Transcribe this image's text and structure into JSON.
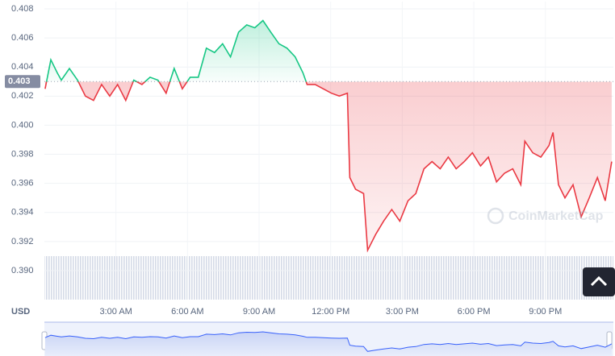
{
  "chart_data": {
    "type": "line",
    "currency": "USD",
    "watermark": "CoinMarketCap",
    "reference_line": {
      "value": 0.403,
      "label": "0.403"
    },
    "colors": {
      "above": "#16c784",
      "below": "#ea3943"
    },
    "grid": true,
    "xlim": [
      0,
      23.85
    ],
    "xticks": [
      {
        "value": 3,
        "label": "3:00 AM"
      },
      {
        "value": 6,
        "label": "6:00 AM"
      },
      {
        "value": 9,
        "label": "9:00 AM"
      },
      {
        "value": 12,
        "label": "12:00 PM"
      },
      {
        "value": 15,
        "label": "3:00 PM"
      },
      {
        "value": 18,
        "label": "6:00 PM"
      },
      {
        "value": 21,
        "label": "9:00 PM"
      }
    ],
    "ylim": [
      0.389,
      0.4085
    ],
    "yticks": [
      {
        "value": 0.39,
        "label": "0.390"
      },
      {
        "value": 0.392,
        "label": "0.392"
      },
      {
        "value": 0.394,
        "label": "0.394"
      },
      {
        "value": 0.396,
        "label": "0.396"
      },
      {
        "value": 0.398,
        "label": "0.398"
      },
      {
        "value": 0.4,
        "label": "0.400"
      },
      {
        "value": 0.402,
        "label": "0.402"
      },
      {
        "value": 0.404,
        "label": "0.404"
      },
      {
        "value": 0.406,
        "label": "0.406"
      },
      {
        "value": 0.408,
        "label": "0.408"
      }
    ],
    "x": [
      0.03,
      0.27,
      0.54,
      0.71,
      1.05,
      1.39,
      1.72,
      2.06,
      2.4,
      2.74,
      3.07,
      3.41,
      3.75,
      4.09,
      4.43,
      4.76,
      5.1,
      5.44,
      5.78,
      6.11,
      6.45,
      6.79,
      7.13,
      7.47,
      7.8,
      8.14,
      8.48,
      8.82,
      9.16,
      9.49,
      9.83,
      10.17,
      10.51,
      10.84,
      11.01,
      11.35,
      11.69,
      12.03,
      12.36,
      12.7,
      12.8,
      13.04,
      13.38,
      13.55,
      13.89,
      14.22,
      14.56,
      14.9,
      15.24,
      15.57,
      15.91,
      16.25,
      16.59,
      16.93,
      17.26,
      17.6,
      17.94,
      18.28,
      18.61,
      18.95,
      19.29,
      19.63,
      19.97,
      20.14,
      20.47,
      20.81,
      21.15,
      21.32,
      21.55,
      21.82,
      22.16,
      22.5,
      22.84,
      23.18,
      23.51,
      23.78
    ],
    "values": [
      0.4025,
      0.4045,
      0.4036,
      0.4031,
      0.4039,
      0.4031,
      0.402,
      0.4017,
      0.4028,
      0.402,
      0.4028,
      0.4017,
      0.4031,
      0.4028,
      0.4033,
      0.4031,
      0.4022,
      0.4039,
      0.4025,
      0.4033,
      0.4033,
      0.4053,
      0.405,
      0.4056,
      0.4047,
      0.4064,
      0.4069,
      0.4067,
      0.4072,
      0.4064,
      0.4056,
      0.4053,
      0.4047,
      0.4036,
      0.4028,
      0.4028,
      0.4025,
      0.4022,
      0.402,
      0.4022,
      0.3964,
      0.3956,
      0.3953,
      0.3914,
      0.3925,
      0.3934,
      0.3942,
      0.3934,
      0.3948,
      0.3953,
      0.397,
      0.3975,
      0.397,
      0.3978,
      0.397,
      0.3975,
      0.3981,
      0.3972,
      0.3978,
      0.3961,
      0.3967,
      0.397,
      0.3959,
      0.3989,
      0.3981,
      0.3978,
      0.3986,
      0.3995,
      0.3959,
      0.395,
      0.3959,
      0.3937,
      0.395,
      0.3964,
      0.3948,
      0.3975
    ]
  }
}
